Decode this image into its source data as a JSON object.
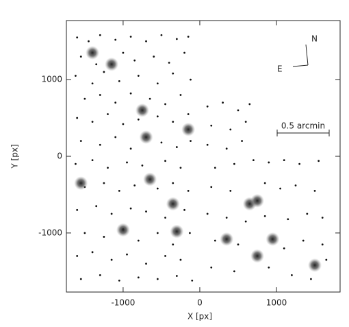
{
  "chart_data": {
    "type": "scatter",
    "xlabel": "X [px]",
    "ylabel": "Y [px]",
    "annotations": [
      "N",
      "E",
      "0.5 arcmin"
    ],
    "xlim": [
      -1740,
      1830
    ],
    "ylim": [
      -1770,
      1770
    ],
    "xticks": [
      -1000,
      0,
      1000
    ],
    "yticks": [
      -1000,
      0,
      1000
    ],
    "series": [
      {
        "color": "#111111",
        "x": [
          -1600,
          -1450,
          -1300,
          -1100,
          -900,
          -700,
          -500,
          -300,
          -150,
          -1550,
          -1350,
          -1000,
          -850,
          -600,
          -400,
          -200,
          -1620,
          -1400,
          -1250,
          -1050,
          -800,
          -550,
          -350,
          -120,
          -1500,
          -1300,
          -1100,
          -900,
          -650,
          -450,
          -250,
          -1600,
          -1400,
          -1200,
          -1000,
          -800,
          -550,
          -350,
          -150,
          -1550,
          -1300,
          -1100,
          -900,
          -500,
          -300,
          -120,
          -1620,
          -1400,
          -1200,
          -950,
          -750,
          -450,
          -250,
          -1500,
          -1250,
          -1050,
          -850,
          -550,
          -350,
          -150,
          -1600,
          -1350,
          -1150,
          -900,
          -700,
          -450,
          -200,
          -1500,
          -1250,
          -1000,
          -800,
          -550,
          -350,
          -130,
          -1600,
          -1400,
          -1150,
          -950,
          -700,
          -450,
          -250,
          -1550,
          -1300,
          -1050,
          -800,
          -550,
          -300,
          -100,
          100,
          300,
          500,
          650,
          150,
          400,
          600,
          100,
          350,
          550,
          200,
          450,
          700,
          900,
          1100,
          1300,
          1550,
          150,
          400,
          850,
          1050,
          1250,
          1500,
          100,
          350,
          600,
          850,
          1150,
          1400,
          1600,
          200,
          500,
          1100,
          1350,
          1600,
          150,
          450,
          900,
          1200,
          1450,
          1650
        ],
        "values": [
          1550,
          1500,
          1580,
          1520,
          1560,
          1500,
          1580,
          1530,
          1560,
          1300,
          1200,
          1350,
          1250,
          1300,
          1220,
          1350,
          1050,
          950,
          1100,
          980,
          1050,
          950,
          1080,
          1000,
          750,
          800,
          700,
          820,
          750,
          680,
          800,
          500,
          450,
          550,
          420,
          480,
          520,
          450,
          550,
          200,
          150,
          250,
          100,
          180,
          120,
          200,
          -100,
          -50,
          -150,
          -80,
          -120,
          -60,
          -150,
          -400,
          -350,
          -450,
          -380,
          -420,
          -350,
          -450,
          -700,
          -650,
          -750,
          -680,
          -720,
          -800,
          -700,
          -1000,
          -1050,
          -950,
          -1100,
          -1000,
          -1150,
          -1000,
          -1300,
          -1250,
          -1350,
          -1280,
          -1400,
          -1300,
          -1350,
          -1600,
          -1550,
          -1620,
          -1580,
          -1600,
          -1560,
          -1620,
          650,
          700,
          600,
          680,
          400,
          350,
          450,
          150,
          100,
          200,
          -150,
          -100,
          -50,
          -80,
          -50,
          -100,
          -60,
          -400,
          -450,
          -350,
          -420,
          -380,
          -450,
          -750,
          -800,
          -850,
          -780,
          -820,
          -750,
          -800,
          -1100,
          -1150,
          -1200,
          -1100,
          -1150,
          -1450,
          -1500,
          -1450,
          -1550,
          -1600,
          -1350
        ]
      },
      {
        "color": "#555555",
        "x": [
          -1400,
          -1150,
          -750,
          -700,
          -150,
          -650,
          -350,
          -300,
          650,
          750,
          950,
          750,
          1500,
          350,
          -1550,
          -1000
        ],
        "values": [
          1350,
          1200,
          600,
          250,
          350,
          -300,
          -620,
          -980,
          -620,
          -580,
          -1080,
          -1300,
          -1420,
          -1080,
          -350,
          -960
        ]
      }
    ]
  }
}
